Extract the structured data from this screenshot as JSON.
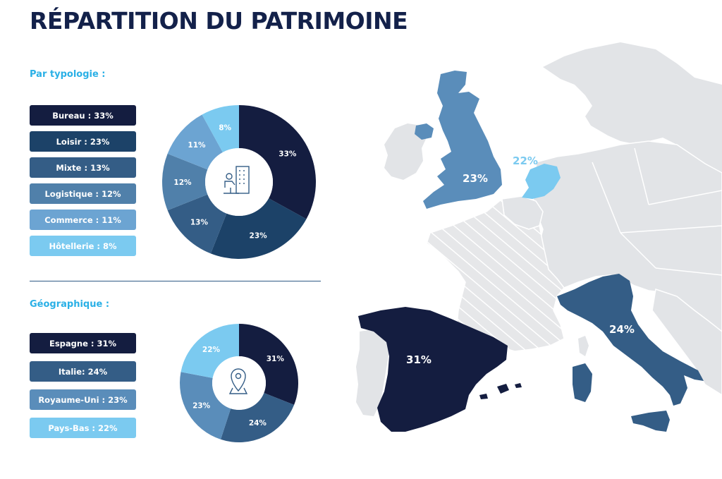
{
  "title": "RÉPARTITION DU PATRIMOINE",
  "sections": {
    "typology_label": "Par typologie :",
    "geo_label": "Géographique :"
  },
  "chart_data": [
    {
      "type": "pie",
      "style": "donut",
      "categories": [
        "Bureau",
        "Loisir",
        "Mixte",
        "Logistique",
        "Commerce",
        "Hôtellerie"
      ],
      "values": [
        33,
        23,
        13,
        12,
        11,
        8
      ],
      "legend_labels": [
        "Bureau : 33%",
        "Loisir : 23%",
        "Mixte : 13%",
        "Logistique : 12%",
        "Commerce : 11%",
        "Hôtellerie : 8%"
      ],
      "slice_labels": [
        "33%",
        "23%",
        "13%",
        "12%",
        "11%",
        "8%"
      ],
      "colors": [
        "#141d40",
        "#1c4268",
        "#345d86",
        "#5080aa",
        "#6ca4d2",
        "#7bcaf0"
      ],
      "legend_placement": "left",
      "center_icon": "office-worker-icon"
    },
    {
      "type": "pie",
      "style": "donut",
      "categories": [
        "Espagne",
        "Italie",
        "Royaume-Uni",
        "Pays-Bas"
      ],
      "values": [
        31,
        24,
        23,
        22
      ],
      "legend_labels": [
        "Espagne : 31%",
        "Italie: 24%",
        "Royaume-Uni : 23%",
        "Pays-Bas : 22%"
      ],
      "slice_labels": [
        "31%",
        "24%",
        "23%",
        "22%"
      ],
      "colors": [
        "#141d40",
        "#345d86",
        "#5a8dba",
        "#7bcaf0"
      ],
      "legend_placement": "left",
      "center_icon": "map-pin-icon"
    }
  ],
  "map": {
    "labels": {
      "spain": "31%",
      "italy": "24%",
      "uk": "23%",
      "netherlands": "22%"
    },
    "colors": {
      "spain": "#141d40",
      "italy": "#345d86",
      "uk": "#5a8dba",
      "netherlands": "#7bcaf0",
      "land": "#e2e4e7",
      "france": "#e6e7e9",
      "hatch": "#ffffff"
    }
  }
}
